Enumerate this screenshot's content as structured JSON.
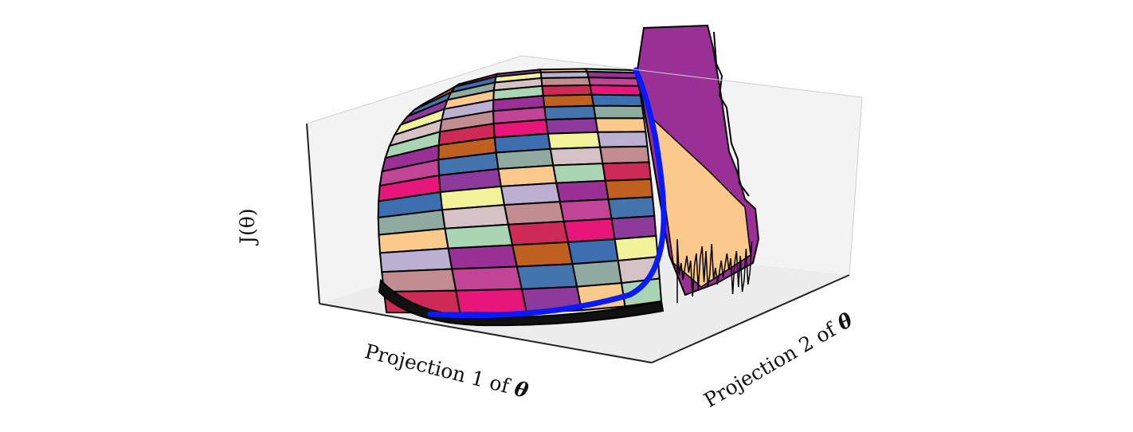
{
  "chart_data": {
    "type": "surface3d",
    "title": "",
    "xlabel": "Projection 1 of",
    "xlabel_symbol": "θ",
    "ylabel": "Projection 2 of",
    "ylabel_symbol": "θ",
    "zlabel": "J(θ)",
    "grid": false,
    "surface_colormap": [
      "#ce2a56",
      "#c24496",
      "#bf5f20",
      "#e8167a",
      "#4474ad",
      "#3d6fb0",
      "#8e3a9c",
      "#8faaa0",
      "#f2f29a",
      "#fbc98b",
      "#d6c2c4",
      "#bcb0d2",
      "#a9d5b5",
      "#c28d90",
      "#9a2f96"
    ],
    "trajectory": {
      "color": "#0a1aff",
      "description_points": [
        [
          0.0,
          1.0,
          0.98
        ],
        [
          0.15,
          0.95,
          0.55
        ],
        [
          0.45,
          0.75,
          0.12
        ],
        [
          1.0,
          0.2,
          0.0
        ]
      ]
    }
  }
}
